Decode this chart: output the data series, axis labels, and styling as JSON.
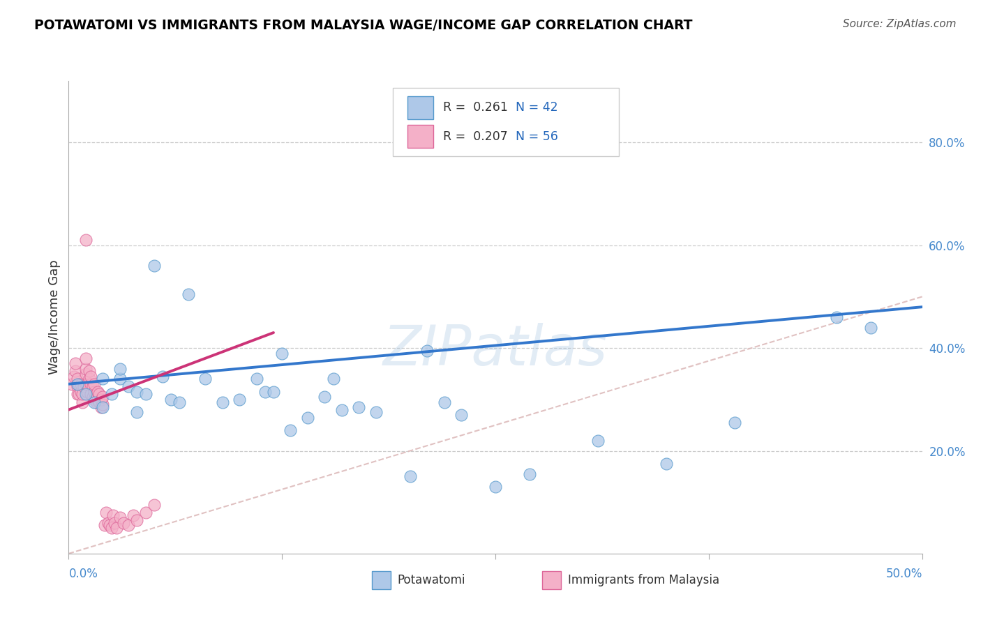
{
  "title": "POTAWATOMI VS IMMIGRANTS FROM MALAYSIA WAGE/INCOME GAP CORRELATION CHART",
  "source": "Source: ZipAtlas.com",
  "ylabel": "Wage/Income Gap",
  "legend_r1": "R =  0.261",
  "legend_n1": "N = 42",
  "legend_r2": "R =  0.207",
  "legend_n2": "N = 56",
  "blue_fill": "#aec8e8",
  "blue_edge": "#5599cc",
  "pink_fill": "#f4b0c8",
  "pink_edge": "#dd6699",
  "trend_blue": "#3377cc",
  "trend_pink": "#cc3377",
  "diag_color": "#ddbbbb",
  "watermark_color": "#99bbdd",
  "xlim": [
    0.0,
    0.5
  ],
  "ylim": [
    0.0,
    0.92
  ],
  "y_ticks": [
    0.2,
    0.4,
    0.6,
    0.8
  ],
  "x_ticks_major": [
    0.0,
    0.125,
    0.25,
    0.375,
    0.5
  ],
  "label_blue": "Potawatomi",
  "label_pink": "Immigrants from Malaysia",
  "potawatomi_x": [
    0.005,
    0.01,
    0.015,
    0.02,
    0.02,
    0.025,
    0.03,
    0.03,
    0.035,
    0.04,
    0.04,
    0.045,
    0.05,
    0.055,
    0.06,
    0.065,
    0.07,
    0.08,
    0.09,
    0.1,
    0.11,
    0.115,
    0.12,
    0.125,
    0.13,
    0.14,
    0.15,
    0.155,
    0.16,
    0.17,
    0.18,
    0.2,
    0.21,
    0.22,
    0.23,
    0.25,
    0.27,
    0.31,
    0.35,
    0.39,
    0.45,
    0.47
  ],
  "potawatomi_y": [
    0.33,
    0.31,
    0.295,
    0.34,
    0.285,
    0.31,
    0.34,
    0.36,
    0.325,
    0.275,
    0.315,
    0.31,
    0.56,
    0.345,
    0.3,
    0.295,
    0.505,
    0.34,
    0.295,
    0.3,
    0.34,
    0.315,
    0.315,
    0.39,
    0.24,
    0.265,
    0.305,
    0.34,
    0.28,
    0.285,
    0.275,
    0.15,
    0.395,
    0.295,
    0.27,
    0.13,
    0.155,
    0.22,
    0.175,
    0.255,
    0.46,
    0.44
  ],
  "malaysia_x": [
    0.002,
    0.003,
    0.004,
    0.004,
    0.005,
    0.005,
    0.005,
    0.006,
    0.006,
    0.007,
    0.007,
    0.008,
    0.008,
    0.009,
    0.01,
    0.01,
    0.01,
    0.01,
    0.01,
    0.011,
    0.011,
    0.012,
    0.012,
    0.013,
    0.013,
    0.013,
    0.014,
    0.014,
    0.015,
    0.015,
    0.015,
    0.016,
    0.016,
    0.017,
    0.017,
    0.018,
    0.018,
    0.019,
    0.019,
    0.02,
    0.02,
    0.021,
    0.022,
    0.023,
    0.024,
    0.025,
    0.026,
    0.027,
    0.028,
    0.03,
    0.032,
    0.035,
    0.038,
    0.04,
    0.045,
    0.05
  ],
  "malaysia_y": [
    0.33,
    0.345,
    0.355,
    0.37,
    0.31,
    0.325,
    0.34,
    0.31,
    0.33,
    0.315,
    0.33,
    0.295,
    0.31,
    0.325,
    0.33,
    0.35,
    0.36,
    0.38,
    0.61,
    0.315,
    0.33,
    0.34,
    0.355,
    0.31,
    0.33,
    0.345,
    0.305,
    0.325,
    0.3,
    0.315,
    0.33,
    0.295,
    0.31,
    0.3,
    0.315,
    0.295,
    0.31,
    0.285,
    0.3,
    0.29,
    0.305,
    0.055,
    0.08,
    0.06,
    0.055,
    0.05,
    0.075,
    0.06,
    0.05,
    0.07,
    0.06,
    0.055,
    0.075,
    0.065,
    0.08,
    0.095
  ]
}
